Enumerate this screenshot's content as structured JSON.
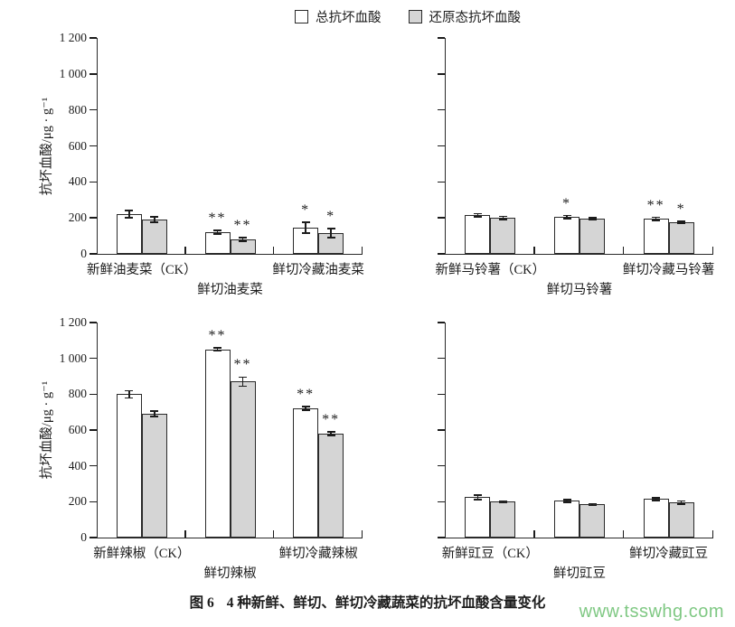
{
  "legend": {
    "items": [
      {
        "label": "总抗坏血酸",
        "swatch": "total"
      },
      {
        "label": "还原态抗坏血酸",
        "swatch": "reduced"
      }
    ]
  },
  "y_axis": {
    "title": "抗坏血酸/μg · g⁻¹",
    "tick_labels_top_down": [
      "1 200",
      "1 000",
      "800",
      "600",
      "400",
      "200",
      "0"
    ],
    "max": 1200,
    "interval": 200
  },
  "caption": {
    "prefix": "图 6",
    "text": "4 种新鲜、鲜切、鲜切冷藏蔬菜的抗坏血酸含量变化"
  },
  "watermark": "www.tsswhg.com",
  "colors": {
    "total_fill": "#ffffff",
    "reduced_fill": "#d5d5d5",
    "axis": "#2a2a2a",
    "text": "#1c1c1c",
    "watermark": "#7fc883"
  },
  "chart_data": [
    {
      "type": "bar",
      "panel": "top-left",
      "categories": [
        "新鲜油麦菜（CK）",
        "鲜切油麦菜",
        "鲜切冷藏油麦菜"
      ],
      "series": [
        {
          "name": "总抗坏血酸",
          "values": [
            220,
            120,
            145
          ],
          "errors": [
            20,
            10,
            30
          ],
          "sig": [
            "",
            "**",
            "*"
          ]
        },
        {
          "name": "还原态抗坏血酸",
          "values": [
            190,
            80,
            115
          ],
          "errors": [
            15,
            10,
            25
          ],
          "sig": [
            "",
            "**",
            "*"
          ]
        }
      ],
      "ylabel": "抗坏血酸/μg · g⁻¹",
      "ylim": [
        0,
        1200
      ],
      "y_tick_labels_visible": true,
      "grid": false
    },
    {
      "type": "bar",
      "panel": "top-right",
      "categories": [
        "新鲜马铃薯（CK）",
        "鲜切马铃薯",
        "鲜切冷藏马铃薯"
      ],
      "series": [
        {
          "name": "总抗坏血酸",
          "values": [
            215,
            205,
            195
          ],
          "errors": [
            8,
            8,
            8
          ],
          "sig": [
            "",
            "*",
            "**"
          ]
        },
        {
          "name": "还原态抗坏血酸",
          "values": [
            200,
            195,
            175
          ],
          "errors": [
            8,
            5,
            5
          ],
          "sig": [
            "",
            "",
            "*"
          ]
        }
      ],
      "ylabel": "抗坏血酸/μg · g⁻¹",
      "ylim": [
        0,
        1200
      ],
      "y_tick_labels_visible": false,
      "grid": false
    },
    {
      "type": "bar",
      "panel": "bottom-left",
      "categories": [
        "新鲜辣椒（CK）",
        "鲜切辣椒",
        "鲜切冷藏辣椒"
      ],
      "series": [
        {
          "name": "总抗坏血酸",
          "values": [
            800,
            1050,
            720
          ],
          "errors": [
            20,
            10,
            10
          ],
          "sig": [
            "",
            "**",
            "**"
          ]
        },
        {
          "name": "还原态抗坏血酸",
          "values": [
            690,
            870,
            580
          ],
          "errors": [
            15,
            25,
            10
          ],
          "sig": [
            "",
            "**",
            "**"
          ]
        }
      ],
      "ylabel": "抗坏血酸/μg · g⁻¹",
      "ylim": [
        0,
        1200
      ],
      "y_tick_labels_visible": true,
      "grid": false
    },
    {
      "type": "bar",
      "panel": "bottom-right",
      "categories": [
        "新鲜豇豆（CK）",
        "鲜切豇豆",
        "鲜切冷藏豇豆"
      ],
      "series": [
        {
          "name": "总抗坏血酸",
          "values": [
            225,
            205,
            215
          ],
          "errors": [
            12,
            8,
            8
          ],
          "sig": [
            "",
            "",
            ""
          ]
        },
        {
          "name": "还原态抗坏血酸",
          "values": [
            200,
            185,
            195
          ],
          "errors": [
            5,
            5,
            8
          ],
          "sig": [
            "",
            "",
            ""
          ]
        }
      ],
      "ylabel": "抗坏血酸/μg · g⁻¹",
      "ylim": [
        0,
        1200
      ],
      "y_tick_labels_visible": false,
      "grid": false
    }
  ]
}
